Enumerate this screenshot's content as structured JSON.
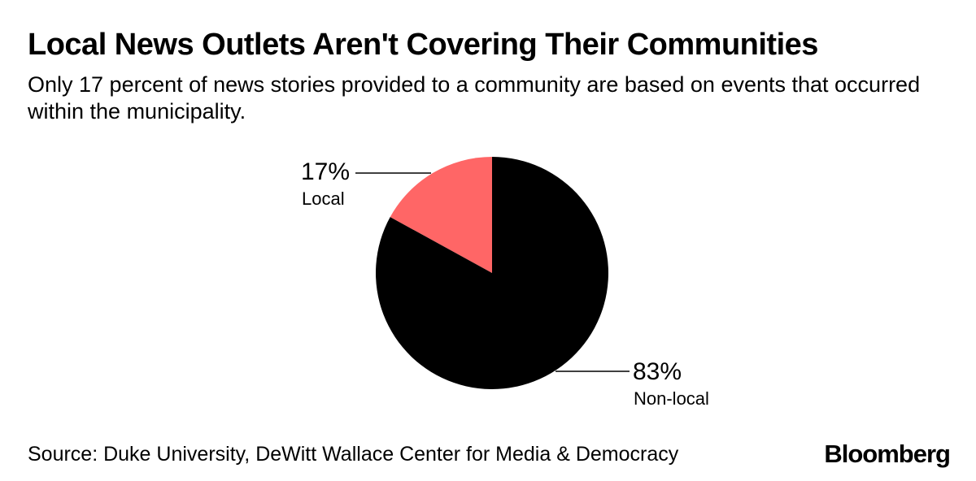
{
  "header": {
    "title": "Local News Outlets Aren't Covering Their Communities",
    "subtitle": "Only 17 percent of news stories provided to a community are based on events that occurred within the municipality."
  },
  "footer": {
    "source": "Source: Duke University, DeWitt Wallace Center for Media & Democracy",
    "brand": "Bloomberg"
  },
  "chart_data": {
    "type": "pie",
    "title": "Local News Outlets Aren't Covering Their Communities",
    "subtitle": "Only 17 percent of news stories provided to a community are based on events that occurred within the municipality.",
    "slices": [
      {
        "label": "Local",
        "value": 17,
        "display": "17%",
        "color": "#ff6666"
      },
      {
        "label": "Non-local",
        "value": 83,
        "display": "83%",
        "color": "#000000"
      }
    ]
  }
}
